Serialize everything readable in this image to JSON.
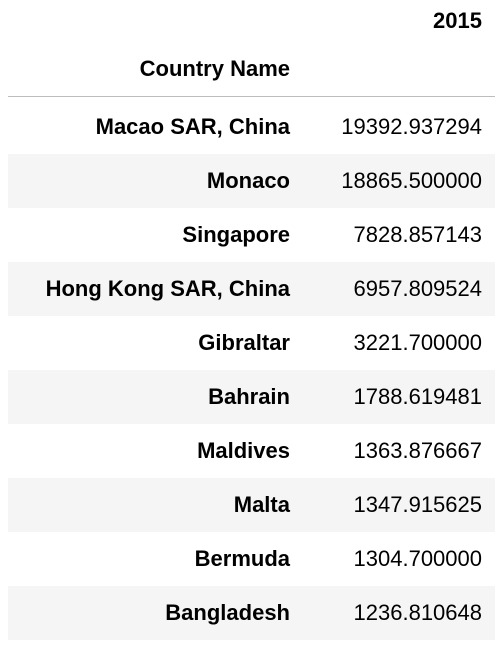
{
  "table": {
    "column_header": "2015",
    "index_header": "Country Name",
    "rows": [
      {
        "label": "Macao SAR, China",
        "value": "19392.937294"
      },
      {
        "label": "Monaco",
        "value": "18865.500000"
      },
      {
        "label": "Singapore",
        "value": "7828.857143"
      },
      {
        "label": "Hong Kong SAR, China",
        "value": "6957.809524"
      },
      {
        "label": "Gibraltar",
        "value": "3221.700000"
      },
      {
        "label": "Bahrain",
        "value": "1788.619481"
      },
      {
        "label": "Maldives",
        "value": "1363.876667"
      },
      {
        "label": "Malta",
        "value": "1347.915625"
      },
      {
        "label": "Bermuda",
        "value": "1304.700000"
      },
      {
        "label": "Bangladesh",
        "value": "1236.810648"
      }
    ]
  },
  "colors": {
    "stripe": "#f5f5f5",
    "divider": "#bdbdbd",
    "text": "#000000"
  }
}
